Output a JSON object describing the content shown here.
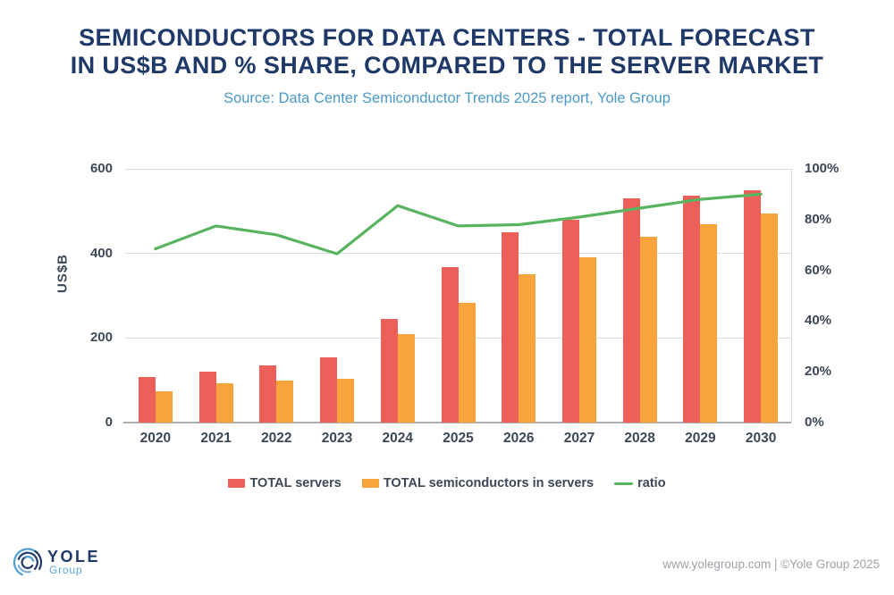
{
  "header": {
    "title_line1": "SEMICONDUCTORS FOR DATA CENTERS - TOTAL FORECAST",
    "title_line2": "IN US$B AND % SHARE, COMPARED TO THE SERVER MARKET",
    "source": "Source: Data Center Semiconductor Trends 2025 report, Yole Group"
  },
  "chart_data": {
    "type": "combo: grouped bar + line",
    "categories": [
      "2020",
      "2021",
      "2022",
      "2023",
      "2024",
      "2025",
      "2026",
      "2027",
      "2028",
      "2029",
      "2030"
    ],
    "series": [
      {
        "name": "TOTAL servers",
        "type": "bar",
        "axis": "left",
        "color": "#EC6059",
        "values": [
          108,
          120,
          135,
          155,
          245,
          368,
          450,
          480,
          530,
          537,
          550
        ]
      },
      {
        "name": "TOTAL semiconductors in servers",
        "type": "bar",
        "axis": "left",
        "color": "#F7A43C",
        "values": [
          74,
          93,
          100,
          103,
          210,
          283,
          350,
          390,
          440,
          470,
          494
        ]
      },
      {
        "name": "ratio",
        "type": "line",
        "axis": "right",
        "color": "#58B45E",
        "values": [
          68.5,
          77.5,
          74,
          66.5,
          85.5,
          77.5,
          78,
          81,
          84.5,
          88,
          90
        ]
      }
    ],
    "title": "SEMICONDUCTORS FOR DATA CENTERS - TOTAL FORECAST IN US$B AND % SHARE, COMPARED TO THE SERVER MARKET",
    "xlabel": "",
    "ylabel": "US$B",
    "left_axis": {
      "ticks": [
        0,
        200,
        400,
        600
      ],
      "min": 0,
      "max": 600
    },
    "right_axis": {
      "ticks": [
        "0%",
        "20%",
        "40%",
        "60%",
        "80%",
        "100%"
      ],
      "min": 0,
      "max": 100
    },
    "grid": "horizontal gridlines at 200, 400, 600 plus right plot border",
    "legend_position": "bottom"
  },
  "legend": {
    "items": [
      {
        "label": "TOTAL servers",
        "color": "#EC6059",
        "swatch": "rect"
      },
      {
        "label": "TOTAL semiconductors in servers",
        "color": "#F7A43C",
        "swatch": "rect"
      },
      {
        "label": "ratio",
        "color": "#58B45E",
        "swatch": "line"
      }
    ]
  },
  "footer": {
    "logo_name": "YOLE",
    "logo_subtitle": "Group",
    "credit": "www.yolegroup.com | ©Yole Group 2025"
  },
  "colors": {
    "title_text": "#1F3968",
    "subtitle_text": "#4A99CB",
    "axis_text": "#3C4858",
    "gridline": "#DADDE0",
    "baseline": "#A9AEB4",
    "bar_red": "#EC6059",
    "bar_orange": "#F7A43C",
    "line_green": "#58B45E",
    "footer_text": "#9CA3A9",
    "logo_navy": "#1F3968",
    "logo_blue": "#4E9CD0",
    "logo_light_blue": "#7FB3D8"
  }
}
